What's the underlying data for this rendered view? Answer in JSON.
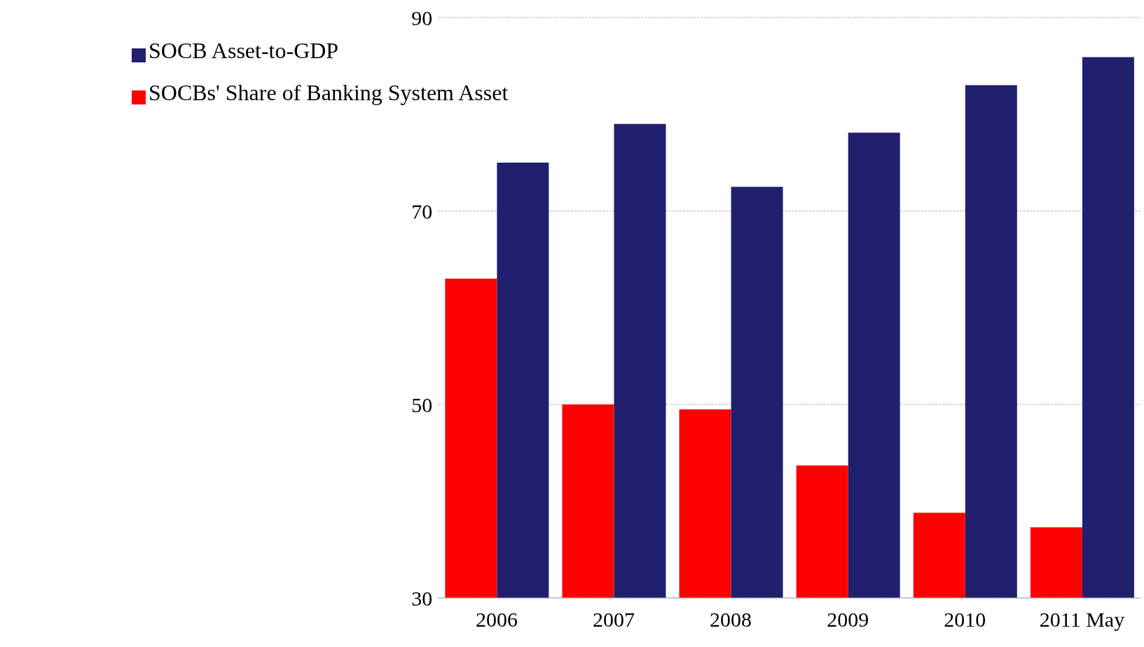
{
  "chart_data": {
    "type": "bar",
    "categories": [
      "2006",
      "2007",
      "2008",
      "2009",
      "2010",
      "2011 May"
    ],
    "series": [
      {
        "name": "SOCBs' Share of Banking System Asset",
        "color": "#ff0000",
        "values": [
          63,
          50,
          49.5,
          43.7,
          38.8,
          37.3
        ]
      },
      {
        "name": "SOCB Asset-to-GDP",
        "color": "#20206f",
        "values": [
          75,
          79,
          72.5,
          78.1,
          83,
          85.9
        ]
      }
    ],
    "ylim": [
      30,
      90
    ],
    "yticks": [
      30,
      50,
      70,
      90
    ],
    "grid": "y",
    "legend": "top left"
  }
}
